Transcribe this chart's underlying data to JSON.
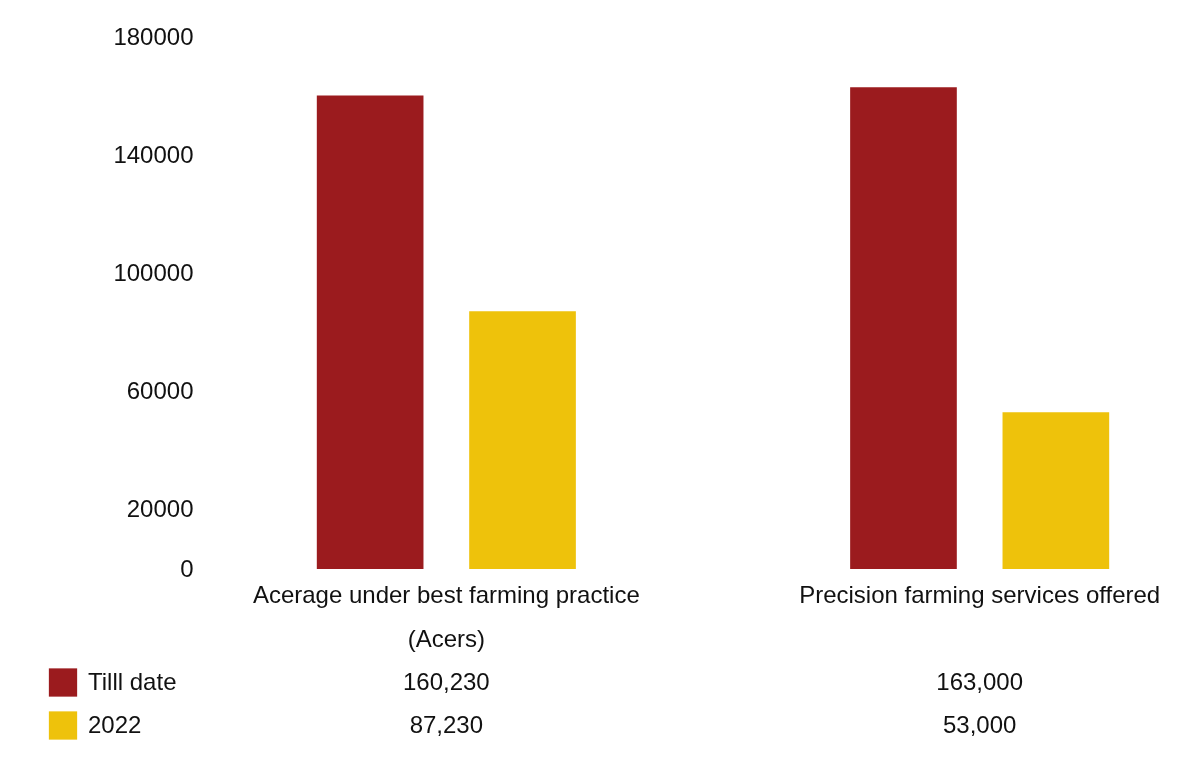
{
  "chart_data": {
    "type": "bar",
    "categories": [
      "Acerage under best farming practice\n(Acers)",
      "Precision farming services offered"
    ],
    "series": [
      {
        "name": "Tilll date",
        "color": "#9b1b1e",
        "values": [
          160230,
          163000
        ],
        "value_labels": [
          "160,230",
          "163,000"
        ]
      },
      {
        "name": "2022",
        "color": "#eec20b",
        "values": [
          87230,
          53000
        ],
        "value_labels": [
          "87,230",
          "53,000"
        ]
      }
    ],
    "ylim": [
      0,
      180000
    ],
    "yticks": [
      0,
      20000,
      60000,
      100000,
      140000,
      180000
    ],
    "grid": false,
    "legend": "bottom left"
  }
}
